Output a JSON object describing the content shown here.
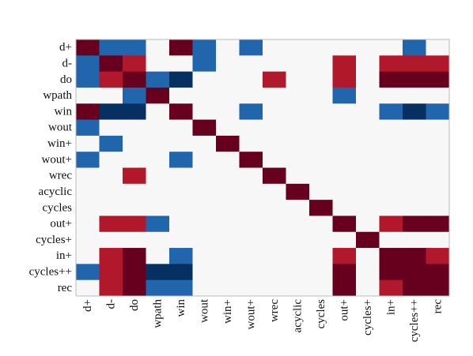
{
  "chart_data": {
    "type": "heatmap",
    "labels": [
      "d+",
      "d-",
      "do",
      "wpath",
      "win",
      "wout",
      "win+",
      "wout+",
      "wrec",
      "acyclic",
      "cycles",
      "out+",
      "cycles+",
      "in+",
      "cycles++",
      "rec"
    ],
    "values": [
      [
        1.0,
        -0.6,
        -0.6,
        0.0,
        1.0,
        -0.6,
        0.0,
        -0.6,
        0.0,
        0.0,
        0.0,
        0.0,
        0.0,
        0.0,
        -0.6,
        0.0
      ],
      [
        -0.6,
        1.0,
        0.6,
        0.0,
        0.0,
        -0.6,
        0.0,
        0.0,
        0.0,
        0.0,
        0.0,
        0.6,
        0.0,
        0.6,
        0.6,
        0.6
      ],
      [
        -0.6,
        0.6,
        1.0,
        -0.6,
        -1.0,
        0.0,
        0.0,
        0.0,
        0.6,
        0.0,
        0.0,
        0.6,
        0.0,
        1.0,
        1.0,
        1.0
      ],
      [
        0.0,
        0.0,
        -0.6,
        1.0,
        0.0,
        0.0,
        0.0,
        0.0,
        0.0,
        0.0,
        0.0,
        -0.6,
        0.0,
        0.0,
        0.0,
        0.0
      ],
      [
        1.0,
        -1.0,
        -1.0,
        0.0,
        1.0,
        0.0,
        0.0,
        -0.6,
        0.0,
        0.0,
        0.0,
        0.0,
        0.0,
        -0.6,
        -1.0,
        -0.6
      ],
      [
        -0.6,
        0.0,
        0.0,
        0.0,
        0.0,
        1.0,
        0.0,
        0.0,
        0.0,
        0.0,
        0.0,
        0.0,
        0.0,
        0.0,
        0.0,
        0.0
      ],
      [
        0.0,
        -0.6,
        0.0,
        0.0,
        0.0,
        0.0,
        1.0,
        0.0,
        0.0,
        0.0,
        0.0,
        0.0,
        0.0,
        0.0,
        0.0,
        0.0
      ],
      [
        -0.6,
        0.0,
        0.0,
        0.0,
        -0.6,
        0.0,
        0.0,
        1.0,
        0.0,
        0.0,
        0.0,
        0.0,
        0.0,
        0.0,
        0.0,
        0.0
      ],
      [
        0.0,
        0.0,
        0.6,
        0.0,
        0.0,
        0.0,
        0.0,
        0.0,
        1.0,
        0.0,
        0.0,
        0.0,
        0.0,
        0.0,
        0.0,
        0.0
      ],
      [
        0.0,
        0.0,
        0.0,
        0.0,
        0.0,
        0.0,
        0.0,
        0.0,
        0.0,
        1.0,
        0.0,
        0.0,
        0.0,
        0.0,
        0.0,
        0.0
      ],
      [
        0.0,
        0.0,
        0.0,
        0.0,
        0.0,
        0.0,
        0.0,
        0.0,
        0.0,
        0.0,
        1.0,
        0.0,
        0.0,
        0.0,
        0.0,
        0.0
      ],
      [
        0.0,
        0.6,
        0.6,
        -0.6,
        0.0,
        0.0,
        0.0,
        0.0,
        0.0,
        0.0,
        0.0,
        1.0,
        0.0,
        0.6,
        1.0,
        1.0
      ],
      [
        0.0,
        0.0,
        0.0,
        0.0,
        0.0,
        0.0,
        0.0,
        0.0,
        0.0,
        0.0,
        0.0,
        0.0,
        1.0,
        0.0,
        0.0,
        0.0
      ],
      [
        0.0,
        0.6,
        1.0,
        0.0,
        -0.6,
        0.0,
        0.0,
        0.0,
        0.0,
        0.0,
        0.0,
        0.6,
        0.0,
        1.0,
        1.0,
        0.6
      ],
      [
        -0.6,
        0.6,
        1.0,
        -1.0,
        -1.0,
        0.0,
        0.0,
        0.0,
        0.0,
        0.0,
        0.0,
        1.0,
        0.0,
        1.0,
        1.0,
        1.0
      ],
      [
        0.0,
        0.6,
        1.0,
        -0.6,
        -0.6,
        0.0,
        0.0,
        0.0,
        0.0,
        0.0,
        0.0,
        1.0,
        0.0,
        0.6,
        1.0,
        1.0
      ]
    ],
    "vmin": -1,
    "vmax": 1,
    "title": "",
    "xlabel": "",
    "ylabel": "",
    "grid": false,
    "legend": "none",
    "colors": {
      "strong_positive": "#67001f",
      "positive": "#b2182b",
      "neutral": "#f7f7f7",
      "negative": "#2166ac",
      "strong_negative": "#053061"
    }
  }
}
